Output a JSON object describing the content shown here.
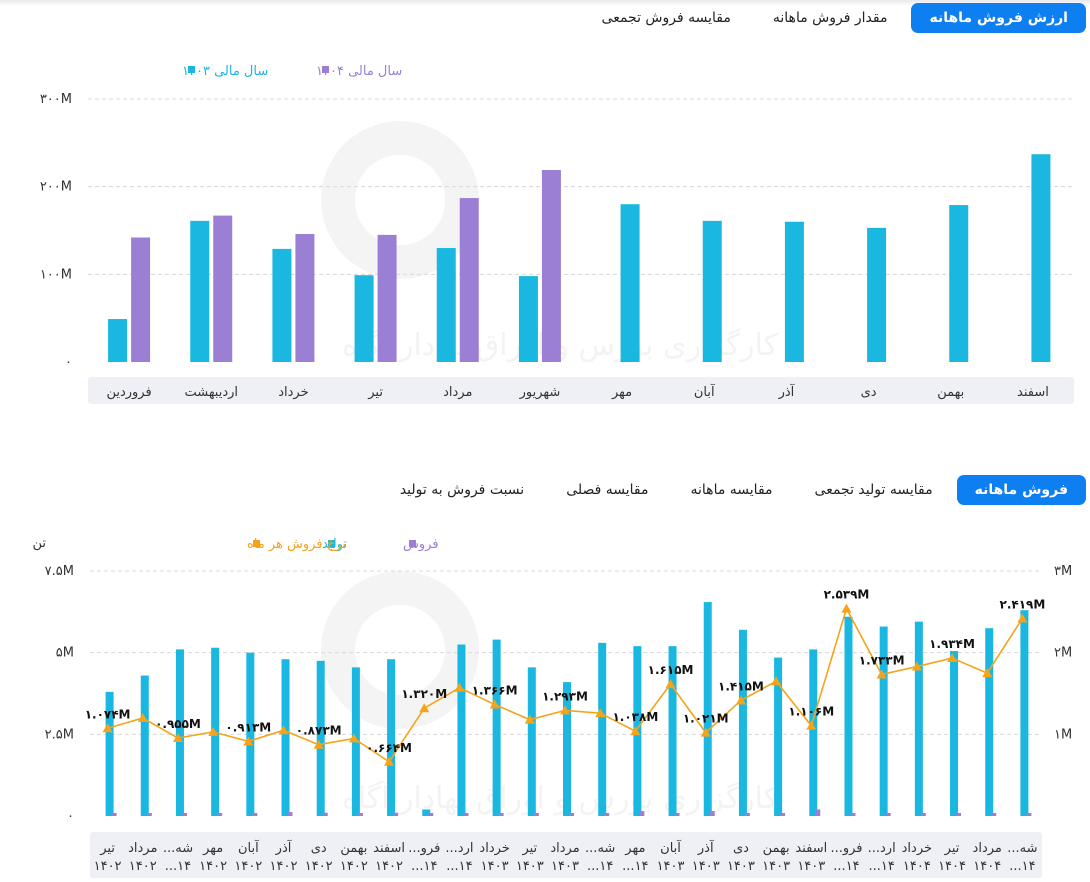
{
  "tabs_top": [
    {
      "label": "ارزش فروش ماهانه",
      "active": true
    },
    {
      "label": "مقدار فروش ماهانه",
      "active": false
    },
    {
      "label": "مقایسه فروش تجمعی",
      "active": false
    }
  ],
  "tabs_bottom": [
    {
      "label": "فروش ماهانه",
      "active": true
    },
    {
      "label": "مقایسه تولید تجمعی",
      "active": false
    },
    {
      "label": "مقایسه ماهانه",
      "active": false
    },
    {
      "label": "مقایسه فصلی",
      "active": false
    },
    {
      "label": "نسبت فروش به تولید",
      "active": false
    }
  ],
  "watermark": "کارگزاری بورس و اوراق بهادار آگاه",
  "colors": {
    "cyan": "#1ab8e0",
    "purple": "#9b7fd4",
    "orange": "#f5a31a",
    "accent": "#0d7ff0"
  },
  "chart_data": [
    {
      "type": "bar",
      "categories": [
        "فروردین",
        "اردیبهشت",
        "خرداد",
        "تیر",
        "مرداد",
        "شهریور",
        "مهر",
        "آبان",
        "آذر",
        "دی",
        "بهمن",
        "اسفند"
      ],
      "series": [
        {
          "name": "سال مالی ۱۴۰۳",
          "color": "#1ab8e0",
          "values": [
            49,
            161,
            129,
            99,
            130,
            98,
            180,
            161,
            160,
            153,
            179,
            237
          ]
        },
        {
          "name": "سال مالی ۱۴۰۴",
          "color": "#9b7fd4",
          "values": [
            142,
            167,
            146,
            145,
            187,
            219,
            null,
            null,
            null,
            null,
            null,
            null
          ]
        }
      ],
      "yticks": [
        "۰",
        "۱۰۰M",
        "۲۰۰M",
        "۳۰۰M"
      ],
      "ylim": [
        0,
        300
      ],
      "legend": "top-left",
      "grid": true
    },
    {
      "type": "bar",
      "categories": [
        [
          "تیر",
          "۱۴۰۲"
        ],
        [
          "مرداد",
          "۱۴۰۲"
        ],
        [
          "شه...",
          "۱۴..."
        ],
        [
          "مهر",
          "۱۴۰۲"
        ],
        [
          "آبان",
          "۱۴۰۲"
        ],
        [
          "آذر",
          "۱۴۰۲"
        ],
        [
          "دی",
          "۱۴۰۲"
        ],
        [
          "بهمن",
          "۱۴۰۲"
        ],
        [
          "اسفند",
          "۱۴۰۲"
        ],
        [
          "فرو...",
          "۱۴..."
        ],
        [
          "ارد...",
          "۱۴..."
        ],
        [
          "خرداد",
          "۱۴۰۳"
        ],
        [
          "تیر",
          "۱۴۰۳"
        ],
        [
          "مرداد",
          "۱۴۰۳"
        ],
        [
          "شه...",
          "۱۴..."
        ],
        [
          "مهر",
          "۱۴..."
        ],
        [
          "آبان",
          "۱۴۰۳"
        ],
        [
          "آذر",
          "۱۴۰۳"
        ],
        [
          "دی",
          "۱۴۰۳"
        ],
        [
          "بهمن",
          "۱۴۰۳"
        ],
        [
          "اسفند",
          "۱۴۰۳"
        ],
        [
          "فرو...",
          "۱۴..."
        ],
        [
          "ارد...",
          "۱۴..."
        ],
        [
          "خرداد",
          "۱۴۰۴"
        ],
        [
          "تیر",
          "۱۴۰۴"
        ],
        [
          "مرداد",
          "۱۴۰۴"
        ],
        [
          "شه...",
          "۱۴..."
        ]
      ],
      "series": [
        {
          "name": "تولید",
          "color": "#1ab8e0",
          "axis": "left",
          "values": [
            3.8,
            4.3,
            5.1,
            5.15,
            5.0,
            4.8,
            4.75,
            4.55,
            4.8,
            0.2,
            5.25,
            5.4,
            4.55,
            4.1,
            5.3,
            5.2,
            5.2,
            6.55,
            5.7,
            4.85,
            5.1,
            6.1,
            5.8,
            5.95,
            5.05,
            5.75,
            6.3
          ]
        },
        {
          "name": "فروش",
          "color": "#9b7fd4",
          "axis": "left",
          "values": [
            0.08,
            0.08,
            0.05,
            0.07,
            0.07,
            0.12,
            0.1,
            0.08,
            0.1,
            0.05,
            0.06,
            0.06,
            0.06,
            0.06,
            0.06,
            0.15,
            0.06,
            0.15,
            0.06,
            0.06,
            0.2,
            0.03,
            0.05,
            0.06,
            0.06,
            0.06,
            0.06
          ]
        },
        {
          "name": "نرخ فروش هر ماه",
          "color": "#f5a31a",
          "axis": "right",
          "type": "line",
          "values": [
            1.074,
            1.2,
            0.955,
            1.03,
            0.913,
            1.05,
            0.873,
            0.95,
            0.664,
            1.32,
            1.57,
            1.366,
            1.18,
            1.293,
            1.26,
            1.038,
            1.615,
            1.021,
            1.415,
            1.65,
            1.106,
            2.539,
            1.733,
            1.83,
            1.934,
            1.75,
            2.419
          ]
        }
      ],
      "point_labels": [
        {
          "index": 0,
          "text": "۱.۰۷۴M"
        },
        {
          "index": 2,
          "text": "۰.۹۵۵M"
        },
        {
          "index": 4,
          "text": "۰.۹۱۳M"
        },
        {
          "index": 6,
          "text": "۰.۸۷۳M"
        },
        {
          "index": 8,
          "text": "۰.۶۶۴M"
        },
        {
          "index": 9,
          "text": "۱.۳۲۰M"
        },
        {
          "index": 11,
          "text": "۱.۳۶۶M"
        },
        {
          "index": 13,
          "text": "۱.۲۹۳M"
        },
        {
          "index": 15,
          "text": "۱.۰۳۸M"
        },
        {
          "index": 16,
          "text": "۱.۶۱۵M"
        },
        {
          "index": 17,
          "text": "۱.۰۲۱M"
        },
        {
          "index": 18,
          "text": "۱.۴۱۵M"
        },
        {
          "index": 20,
          "text": "۱.۱۰۶M"
        },
        {
          "index": 21,
          "text": "۲.۵۳۹M"
        },
        {
          "index": 22,
          "text": "۱.۷۳۳M"
        },
        {
          "index": 24,
          "text": "۱.۹۳۴M"
        },
        {
          "index": 26,
          "text": "۲.۴۱۹M"
        }
      ],
      "yticks_left": [
        "۰",
        "۲.۵M",
        "۵M",
        "۷.۵M"
      ],
      "ylim_left": [
        0,
        7.5
      ],
      "ylabel_left": "تن",
      "yticks_right": [
        "",
        "۱M",
        "۲M",
        "۳M"
      ],
      "ylim_right": [
        0,
        3
      ],
      "legend": "top-left",
      "grid": true
    }
  ]
}
